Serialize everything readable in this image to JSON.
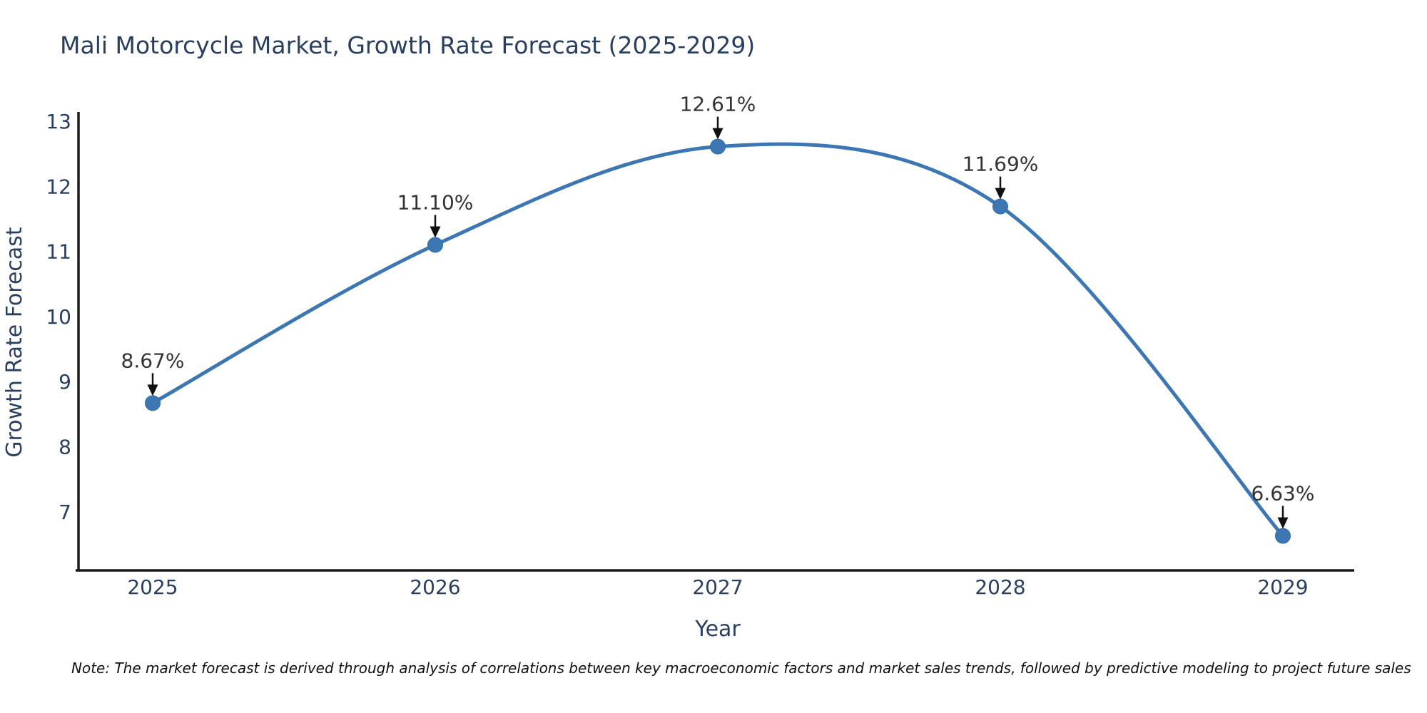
{
  "title": "Mali Motorcycle Market, Growth Rate Forecast (2025-2029)",
  "note": "Note: The market forecast is derived through analysis of correlations between key macroeconomic factors and market sales trends, followed by predictive modeling to project future sales",
  "chart_data": {
    "type": "line",
    "line_shape": "spline",
    "title": "Mali Motorcycle Market, Growth Rate Forecast (2025-2029)",
    "xlabel": "Year",
    "ylabel": "Growth Rate Forecast",
    "x": [
      2025,
      2026,
      2027,
      2028,
      2029
    ],
    "values": [
      8.67,
      11.1,
      12.61,
      11.69,
      6.63
    ],
    "point_labels": [
      "8.67%",
      "11.10%",
      "12.61%",
      "11.69%",
      "6.63%"
    ],
    "xticks": [
      "2025",
      "2026",
      "2027",
      "2028",
      "2029"
    ],
    "yticks": [
      7,
      8,
      9,
      10,
      11,
      12,
      13
    ],
    "ylim": [
      6.06,
      13.17
    ],
    "xlim": [
      2024.73,
      2029.25
    ],
    "grid": false,
    "legend": "none",
    "annotations_have_arrows": true
  },
  "colors": {
    "background": "#ffffff",
    "title": "#2a3f5f",
    "axis_label": "#2a3f5f",
    "tick_label": "#2a3f5f",
    "axis_line": "#1a1a1a",
    "line": "#3c77b3",
    "marker": "#3c77b3",
    "marker_edge": "#2f6da8",
    "annotation_text": "#333333",
    "annotation_arrow": "#111111",
    "note_text": "#111111"
  }
}
